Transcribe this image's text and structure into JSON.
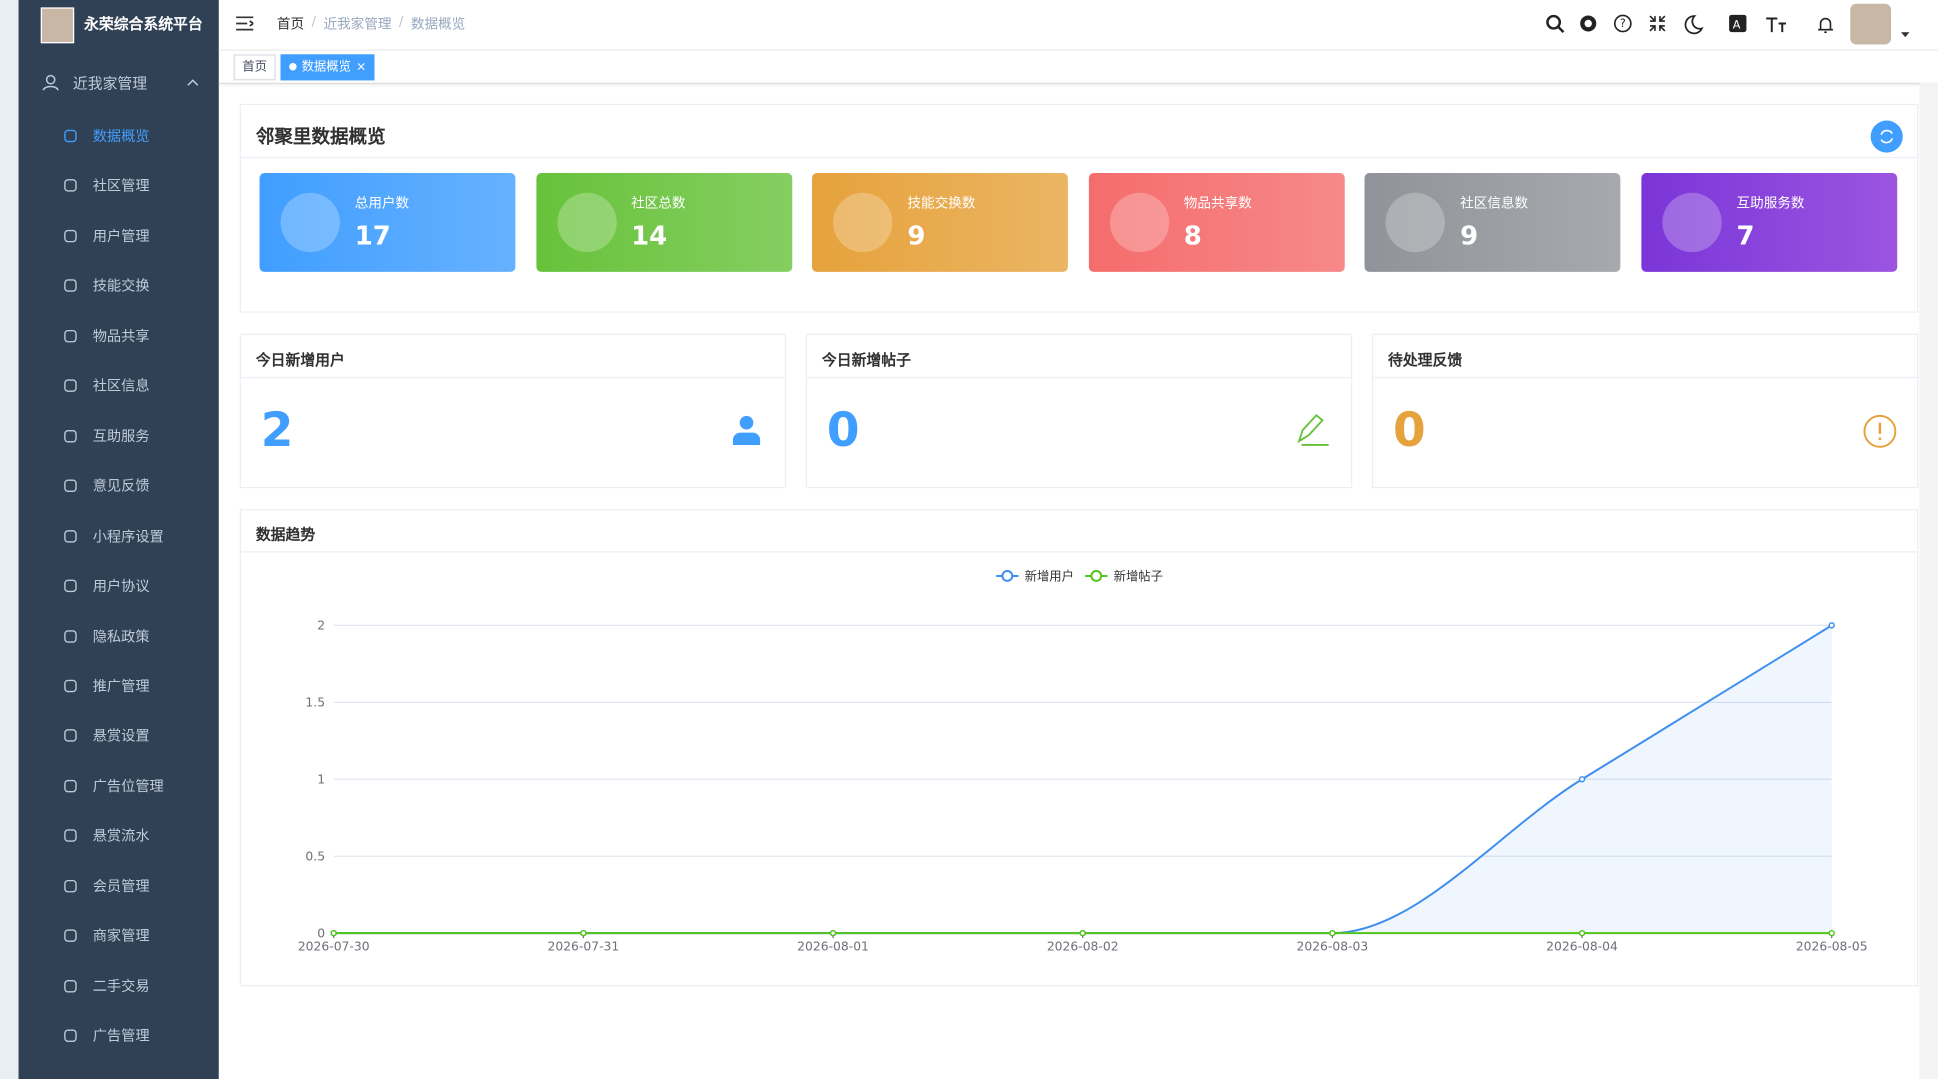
{
  "header": {
    "title": "永荣综合系统平台",
    "breadcrumb": [
      "首页",
      "近我家管理",
      "数据概览"
    ]
  },
  "tags": [
    "首页",
    "数据概览"
  ],
  "sidebar": {
    "group": "近我家管理",
    "items": [
      "数据概览",
      "社区管理",
      "用户管理",
      "技能交换",
      "物品共享",
      "社区信息",
      "互助服务",
      "意见反馈",
      "小程序设置",
      "用户协议",
      "隐私政策",
      "推广管理",
      "悬赏设置",
      "广告位管理",
      "悬赏流水",
      "会员管理",
      "商家管理",
      "二手交易",
      "广告管理"
    ]
  },
  "overview": {
    "title": "邻聚里数据概览",
    "cards": [
      {
        "label": "总用户数",
        "value": 17
      },
      {
        "label": "社区总数",
        "value": 14
      },
      {
        "label": "技能交换数",
        "value": 9
      },
      {
        "label": "物品共享数",
        "value": 8
      },
      {
        "label": "社区信息数",
        "value": 9
      },
      {
        "label": "互助服务数",
        "value": 7
      }
    ]
  },
  "today": [
    {
      "title": "今日新增用户",
      "value": 2
    },
    {
      "title": "今日新增帖子",
      "value": 0
    },
    {
      "title": "待处理反馈",
      "value": 0
    }
  ],
  "chart_data": {
    "type": "line",
    "title": "数据趋势",
    "x": [
      "2026-07-30",
      "2026-07-31",
      "2026-08-01",
      "2026-08-02",
      "2026-08-03",
      "2026-08-04",
      "2026-08-05"
    ],
    "series": [
      {
        "name": "新增用户",
        "color": "#3d8ef0",
        "values": [
          0,
          0,
          0,
          0,
          0,
          1,
          2
        ],
        "area": true
      },
      {
        "name": "新增帖子",
        "color": "#52c41a",
        "values": [
          0,
          0,
          0,
          0,
          0,
          0,
          0
        ]
      }
    ],
    "ylim": [
      0,
      2
    ],
    "yticks": [
      0,
      0.5,
      1,
      1.5,
      2
    ],
    "grid": true,
    "smooth": true,
    "legend": "top"
  }
}
